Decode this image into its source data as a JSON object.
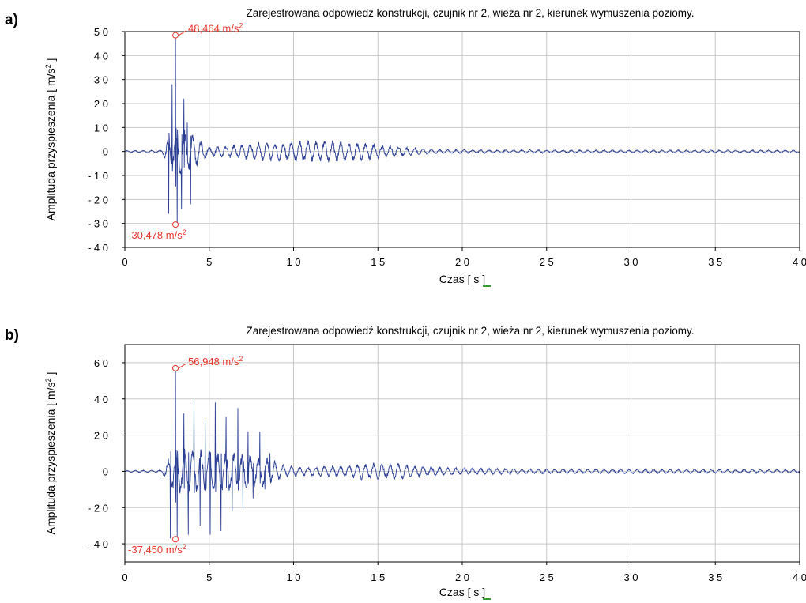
{
  "chart_data": [
    {
      "type": "line",
      "panel_label": "a)",
      "title": "Zarejestrowana  odpowiedź  konstrukcji,  czujnik  nr 2,  wieża  nr 2,  kierunek  wymuszenia  poziomy.",
      "xlabel": "Czas",
      "xunit": "[ s ]",
      "ylabel": "Amplituda  przyspieszenia",
      "yunit": "[ m/s",
      "yunit_sup": "2",
      "yunit_close": " ]",
      "xlim": [
        0,
        40
      ],
      "ylim": [
        -40,
        50
      ],
      "xticks": [
        0,
        5,
        10,
        15,
        20,
        25,
        30,
        35,
        40
      ],
      "xtick_labels": [
        "0",
        "5",
        "1 0",
        "1 5",
        "2 0",
        "2 5",
        "3 0",
        "3 5",
        "4 0"
      ],
      "yticks": [
        50,
        40,
        30,
        20,
        10,
        0,
        -10,
        -20,
        -30,
        -40
      ],
      "ytick_labels": [
        "5 0",
        "4 0",
        "3 0",
        "2 0",
        "1 0",
        "0",
        "- 1 0",
        "- 2 0",
        "- 3 0",
        "- 4 0"
      ],
      "grid": true,
      "max": {
        "x": 3.0,
        "y": 48.464,
        "label": "48,464  m/s",
        "sup": "2"
      },
      "min": {
        "x": 3.0,
        "y": -30.478,
        "label": "-30,478  m/s",
        "sup": "2"
      },
      "bursts": [
        {
          "t": 2.6,
          "a": -26
        },
        {
          "t": 2.8,
          "a": 28
        },
        {
          "t": 3.0,
          "a": 48.464
        },
        {
          "t": 3.1,
          "a": -30.478
        },
        {
          "t": 3.35,
          "a": -24
        },
        {
          "t": 3.5,
          "a": 22
        },
        {
          "t": 3.7,
          "a": 12
        },
        {
          "t": 3.9,
          "a": -22
        }
      ],
      "envelope": [
        [
          0,
          0.3
        ],
        [
          2.2,
          0.5
        ],
        [
          2.5,
          4
        ],
        [
          3,
          8
        ],
        [
          4,
          6
        ],
        [
          5,
          1.5
        ],
        [
          6,
          2
        ],
        [
          8,
          3
        ],
        [
          10,
          3.5
        ],
        [
          12,
          3.5
        ],
        [
          14,
          3
        ],
        [
          16,
          1.8
        ],
        [
          18,
          0.8
        ],
        [
          20,
          0.6
        ],
        [
          30,
          0.5
        ],
        [
          40,
          0.5
        ]
      ]
    },
    {
      "type": "line",
      "panel_label": "b)",
      "title": "Zarejestrowana  odpowiedź  konstrukcji,  czujnik  nr 2,  wieża  nr 2,  kierunek  wymuszenia  poziomy.",
      "xlabel": "Czas",
      "xunit": "[ s ]",
      "ylabel": "Amplituda  przyspieszenia",
      "yunit": "[ m/s",
      "yunit_sup": "2",
      "yunit_close": " ]",
      "xlim": [
        0,
        40
      ],
      "ylim": [
        -50,
        70
      ],
      "xticks": [
        0,
        5,
        10,
        15,
        20,
        25,
        30,
        35,
        40
      ],
      "xtick_labels": [
        "0",
        "5",
        "1 0",
        "1 5",
        "2 0",
        "2 5",
        "3 0",
        "3 5",
        "4 0"
      ],
      "yticks": [
        60,
        40,
        20,
        0,
        -20,
        -40
      ],
      "ytick_labels": [
        "6 0",
        "4 0",
        "2 0",
        "0",
        "- 2 0",
        "- 4 0"
      ],
      "grid": true,
      "max": {
        "x": 3.0,
        "y": 56.948,
        "label": "56,948  m/s",
        "sup": "2"
      },
      "min": {
        "x": 3.0,
        "y": -37.45,
        "label": "-37,450  m/s",
        "sup": "2"
      },
      "bursts": [
        {
          "t": 2.7,
          "a": -37
        },
        {
          "t": 3.0,
          "a": 56.948
        },
        {
          "t": 3.1,
          "a": -37.45
        },
        {
          "t": 3.5,
          "a": 32
        },
        {
          "t": 3.75,
          "a": -35
        },
        {
          "t": 4.1,
          "a": 40
        },
        {
          "t": 4.45,
          "a": -30
        },
        {
          "t": 4.75,
          "a": 28
        },
        {
          "t": 5.05,
          "a": -35
        },
        {
          "t": 5.35,
          "a": 38
        },
        {
          "t": 5.7,
          "a": -33
        },
        {
          "t": 6.0,
          "a": 30
        },
        {
          "t": 6.35,
          "a": -22
        },
        {
          "t": 6.7,
          "a": 35
        },
        {
          "t": 7.0,
          "a": -20
        },
        {
          "t": 7.3,
          "a": 22
        },
        {
          "t": 7.6,
          "a": -15
        },
        {
          "t": 8.0,
          "a": 22
        },
        {
          "t": 8.3,
          "a": -10
        },
        {
          "t": 8.6,
          "a": 10
        }
      ],
      "envelope": [
        [
          0,
          0.4
        ],
        [
          2.2,
          0.6
        ],
        [
          2.6,
          6
        ],
        [
          3,
          10
        ],
        [
          6,
          9
        ],
        [
          8.5,
          6
        ],
        [
          9.5,
          2.5
        ],
        [
          11,
          2
        ],
        [
          13,
          2.5
        ],
        [
          14,
          3.5
        ],
        [
          16,
          3.5
        ],
        [
          18,
          2
        ],
        [
          20,
          1.5
        ],
        [
          25,
          1
        ],
        [
          30,
          1
        ],
        [
          40,
          0.8
        ]
      ]
    }
  ]
}
